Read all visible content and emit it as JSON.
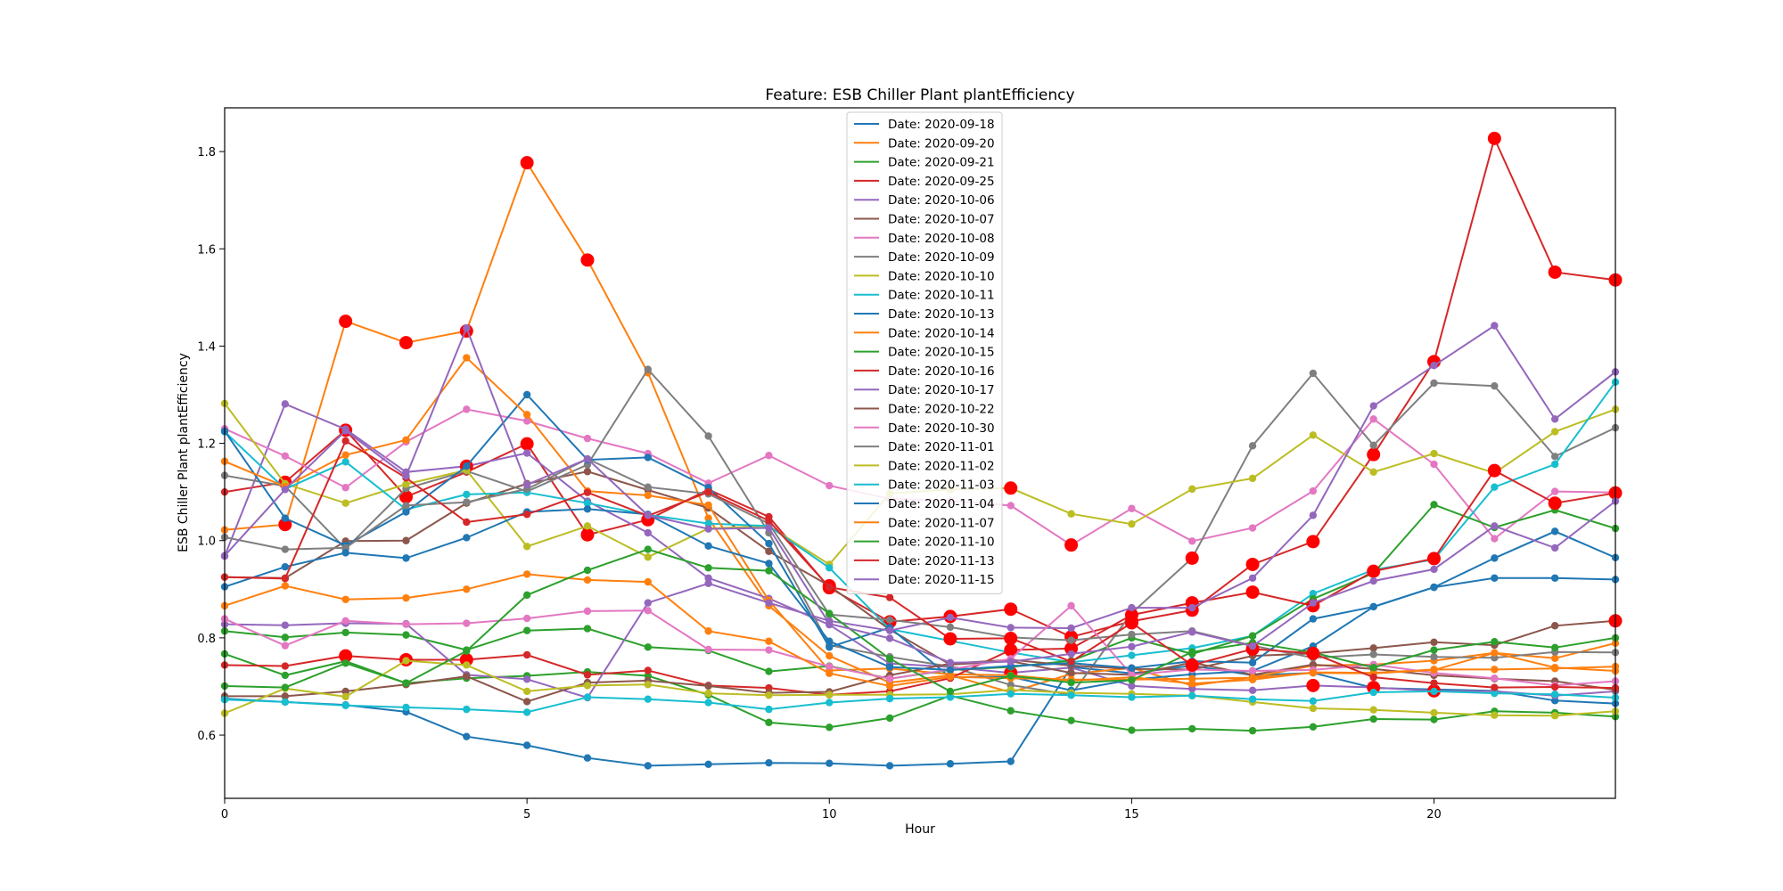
{
  "chart_data": {
    "type": "line",
    "title": "Feature: ESB Chiller Plant plantEfficiency",
    "xlabel": "Hour",
    "ylabel": "ESB Chiller Plant plantEfficiency",
    "xlim": [
      0,
      23
    ],
    "ylim": [
      0.47,
      1.89
    ],
    "xticks": [
      0,
      5,
      10,
      15,
      20
    ],
    "yticks": [
      0.6,
      0.8,
      1.0,
      1.2,
      1.4,
      1.6,
      1.8
    ],
    "legend_position": "top-center",
    "grid": false,
    "x": [
      0,
      1,
      2,
      3,
      4,
      5,
      6,
      7,
      8,
      9,
      10,
      11,
      12,
      13,
      14,
      15,
      16,
      17,
      18,
      19,
      20,
      21,
      22,
      23
    ],
    "anomaly_color": "#ff0000",
    "series": [
      {
        "name": "Date: 2020-09-18",
        "color": "#1f77b4",
        "values": [
          0.675,
          0.668,
          0.662,
          0.648,
          0.597,
          0.579,
          0.553,
          0.537,
          0.54,
          0.543,
          0.542,
          0.537,
          0.541,
          0.546,
          0.74,
          0.727,
          0.743,
          0.723,
          0.728,
          0.697,
          0.694,
          0.691,
          0.671,
          0.665
        ],
        "anomalies": []
      },
      {
        "name": "Date: 2020-09-20",
        "color": "#ff7f0e",
        "values": [
          1.022,
          1.033,
          1.451,
          1.407,
          1.431,
          1.777,
          1.577,
          1.345,
          1.046,
          0.866,
          0.763,
          0.708,
          0.723,
          0.688,
          0.726,
          0.738,
          0.702,
          0.719,
          0.743,
          0.745,
          0.753,
          0.769,
          0.758,
          0.789
        ],
        "anomalies": [
          1,
          2,
          3,
          4,
          5,
          6
        ]
      },
      {
        "name": "Date: 2020-09-21",
        "color": "#2ca02c",
        "values": [
          0.767,
          0.723,
          0.752,
          0.707,
          0.717,
          0.722,
          0.73,
          0.722,
          0.683,
          0.626,
          0.616,
          0.635,
          0.681,
          0.65,
          0.63,
          0.61,
          0.613,
          0.609,
          0.617,
          0.633,
          0.632,
          0.649,
          0.646,
          0.638
        ],
        "anomalies": []
      },
      {
        "name": "Date: 2020-09-25",
        "color": "#d62728",
        "values": [
          1.1,
          1.12,
          1.227,
          1.09,
          1.141,
          1.199,
          1.012,
          1.043,
          1.105,
          1.049,
          0.903,
          0.833,
          0.844,
          0.859,
          0.802,
          0.834,
          0.857,
          0.951,
          0.998,
          1.177,
          1.368,
          1.827,
          1.552,
          1.536
        ],
        "anomalies": [
          1,
          2,
          3,
          5,
          6,
          7,
          10,
          11,
          12,
          13,
          14,
          15,
          16,
          17,
          18,
          19,
          20,
          21,
          22,
          23
        ]
      },
      {
        "name": "Date: 2020-10-06",
        "color": "#9467bd",
        "values": [
          0.968,
          1.281,
          1.229,
          1.141,
          1.153,
          1.18,
          1.081,
          1.016,
          0.923,
          0.881,
          0.827,
          0.747,
          0.74,
          0.728,
          0.739,
          0.701,
          0.695,
          0.692,
          0.702,
          0.698,
          0.691,
          0.69,
          0.681,
          0.69
        ],
        "anomalies": [
          4,
          13,
          18,
          19,
          20
        ]
      },
      {
        "name": "Date: 2020-10-07",
        "color": "#8c564b",
        "values": [
          0.925,
          0.923,
          0.999,
          1.0,
          1.077,
          1.117,
          1.142,
          1.104,
          1.067,
          0.978,
          0.907,
          0.817,
          0.745,
          0.752,
          0.728,
          0.724,
          0.749,
          0.724,
          0.745,
          0.736,
          0.723,
          0.716,
          0.711,
          0.693
        ],
        "anomalies": [
          10
        ]
      },
      {
        "name": "Date: 2020-10-08",
        "color": "#e377c2",
        "values": [
          1.23,
          1.174,
          1.109,
          1.203,
          1.27,
          1.246,
          1.21,
          1.179,
          1.118,
          1.175,
          1.113,
          1.086,
          1.082,
          1.072,
          0.991,
          1.066,
          0.999,
          1.026,
          1.102,
          1.25,
          1.157,
          1.004,
          1.101,
          1.099
        ],
        "anomalies": [
          14
        ]
      },
      {
        "name": "Date: 2020-10-09",
        "color": "#7f7f7f",
        "values": [
          1.134,
          1.112,
          0.983,
          1.107,
          1.143,
          1.101,
          1.156,
          1.352,
          1.215,
          1.016,
          0.785,
          0.761,
          0.741,
          0.703,
          0.683,
          0.851,
          0.964,
          1.195,
          1.344,
          1.196,
          1.324,
          1.318,
          1.173,
          1.232
        ],
        "anomalies": [
          16
        ]
      },
      {
        "name": "Date: 2020-10-10",
        "color": "#bcbd22",
        "values": [
          1.282,
          1.117,
          1.077,
          1.116,
          1.145,
          0.988,
          1.03,
          0.966,
          1.025,
          1.03,
          0.951,
          1.097,
          1.105,
          1.108,
          1.055,
          1.034,
          1.106,
          1.128,
          1.217,
          1.141,
          1.179,
          1.139,
          1.224,
          1.27
        ],
        "anomalies": [
          13
        ]
      },
      {
        "name": "Date: 2020-10-11",
        "color": "#17becf",
        "values": [
          1.224,
          1.106,
          1.162,
          1.064,
          1.095,
          1.099,
          1.077,
          1.053,
          1.035,
          1.03,
          0.944,
          0.818,
          0.794,
          0.77,
          0.75,
          0.764,
          0.779,
          0.804,
          0.891,
          0.94,
          0.961,
          1.11,
          1.157,
          1.326
        ],
        "anomalies": []
      },
      {
        "name": "Date: 2020-10-13",
        "color": "#1f77b4",
        "values": [
          1.225,
          1.046,
          0.99,
          1.059,
          1.153,
          1.3,
          1.166,
          1.171,
          1.109,
          0.994,
          0.781,
          0.821,
          0.719,
          0.72,
          0.692,
          0.714,
          0.725,
          0.732,
          0.783,
          0.864,
          0.904,
          0.964,
          1.019,
          0.965
        ],
        "anomalies": []
      },
      {
        "name": "Date: 2020-10-14",
        "color": "#ff7f0e",
        "values": [
          1.163,
          1.111,
          1.176,
          1.207,
          1.376,
          1.259,
          1.102,
          1.093,
          1.073,
          0.877,
          0.733,
          0.737,
          0.725,
          0.723,
          0.712,
          0.719,
          0.706,
          0.714,
          0.729,
          0.728,
          0.735,
          0.735,
          0.737,
          0.741
        ],
        "anomalies": []
      },
      {
        "name": "Date: 2020-10-15",
        "color": "#2ca02c",
        "values": [
          0.814,
          0.801,
          0.811,
          0.806,
          0.775,
          0.815,
          0.819,
          0.781,
          0.774,
          0.731,
          0.742,
          0.716,
          0.734,
          0.74,
          0.753,
          0.8,
          0.767,
          0.804,
          0.88,
          0.933,
          1.074,
          1.027,
          1.063,
          1.025
        ],
        "anomalies": []
      },
      {
        "name": "Date: 2020-10-16",
        "color": "#d62728",
        "values": [
          0.744,
          0.742,
          0.763,
          0.755,
          0.755,
          0.765,
          0.724,
          0.733,
          0.702,
          0.697,
          0.683,
          0.69,
          0.717,
          0.775,
          0.778,
          0.847,
          0.872,
          0.894,
          0.866,
          0.937,
          0.963,
          1.144,
          1.077,
          1.098
        ],
        "anomalies": [
          2,
          3,
          4,
          13,
          14,
          15,
          16,
          17,
          18,
          19,
          20,
          21,
          22,
          23
        ]
      },
      {
        "name": "Date: 2020-10-17",
        "color": "#9467bd",
        "values": [
          0.828,
          0.826,
          0.83,
          0.829,
          0.724,
          0.715,
          0.677,
          0.872,
          0.912,
          0.872,
          0.835,
          0.815,
          0.842,
          0.821,
          0.82,
          0.862,
          0.862,
          0.923,
          1.052,
          1.277,
          1.36,
          1.442,
          1.25,
          1.347
        ],
        "anomalies": []
      },
      {
        "name": "Date: 2020-10-22",
        "color": "#8c564b",
        "values": [
          0.68,
          0.68,
          0.69,
          0.704,
          0.721,
          0.669,
          0.708,
          0.712,
          0.701,
          0.687,
          0.689,
          0.723,
          0.747,
          0.755,
          0.743,
          0.736,
          0.735,
          0.763,
          0.768,
          0.779,
          0.791,
          0.785,
          0.825,
          0.835
        ],
        "anomalies": [
          23
        ]
      },
      {
        "name": "Date: 2020-10-30",
        "color": "#e377c2",
        "values": [
          0.839,
          0.784,
          0.835,
          0.828,
          0.83,
          0.84,
          0.855,
          0.856,
          0.776,
          0.775,
          0.741,
          0.716,
          0.735,
          0.757,
          0.866,
          0.724,
          0.735,
          0.732,
          0.734,
          0.745,
          0.728,
          0.717,
          0.702,
          0.711
        ],
        "anomalies": []
      },
      {
        "name": "Date: 2020-11-01",
        "color": "#7f7f7f",
        "values": [
          1.007,
          0.982,
          0.985,
          1.072,
          1.079,
          1.106,
          1.168,
          1.11,
          1.096,
          1.035,
          0.848,
          0.837,
          0.822,
          0.801,
          0.795,
          0.807,
          0.814,
          0.784,
          0.759,
          0.766,
          0.761,
          0.759,
          0.771,
          0.77
        ],
        "anomalies": []
      },
      {
        "name": "Date: 2020-11-02",
        "color": "#bcbd22",
        "values": [
          0.645,
          0.696,
          0.679,
          0.753,
          0.744,
          0.69,
          0.702,
          0.704,
          0.686,
          0.682,
          0.683,
          0.683,
          0.684,
          0.693,
          0.687,
          0.685,
          0.681,
          0.668,
          0.655,
          0.652,
          0.646,
          0.641,
          0.64,
          0.649
        ],
        "anomalies": []
      },
      {
        "name": "Date: 2020-11-03",
        "color": "#17becf",
        "values": [
          0.673,
          0.668,
          0.661,
          0.657,
          0.653,
          0.647,
          0.678,
          0.674,
          0.667,
          0.653,
          0.667,
          0.675,
          0.678,
          0.685,
          0.682,
          0.678,
          0.681,
          0.674,
          0.67,
          0.688,
          0.69,
          0.686,
          0.684,
          0.677
        ],
        "anomalies": []
      },
      {
        "name": "Date: 2020-11-04",
        "color": "#1f77b4",
        "values": [
          0.905,
          0.946,
          0.975,
          0.964,
          1.006,
          1.059,
          1.065,
          1.054,
          0.989,
          0.953,
          0.793,
          0.74,
          0.734,
          0.742,
          0.748,
          0.738,
          0.752,
          0.749,
          0.839,
          0.864,
          0.904,
          0.923,
          0.923,
          0.92
        ],
        "anomalies": []
      },
      {
        "name": "Date: 2020-11-07",
        "color": "#ff7f0e",
        "values": [
          0.866,
          0.907,
          0.879,
          0.882,
          0.9,
          0.931,
          0.919,
          0.915,
          0.814,
          0.793,
          0.727,
          0.701,
          0.72,
          0.717,
          0.714,
          0.714,
          0.716,
          0.718,
          0.728,
          0.727,
          0.734,
          0.769,
          0.739,
          0.732
        ],
        "anomalies": []
      },
      {
        "name": "Date: 2020-11-10",
        "color": "#2ca02c",
        "values": [
          0.701,
          0.698,
          0.748,
          0.707,
          0.773,
          0.888,
          0.939,
          0.982,
          0.944,
          0.938,
          0.85,
          0.757,
          0.69,
          0.722,
          0.708,
          0.713,
          0.771,
          0.79,
          0.77,
          0.739,
          0.775,
          0.792,
          0.78,
          0.8
        ],
        "anomalies": []
      },
      {
        "name": "Date: 2020-11-13",
        "color": "#d62728",
        "values": [
          0.925,
          0.922,
          1.205,
          1.129,
          1.038,
          1.054,
          1.099,
          1.051,
          1.1,
          1.041,
          0.904,
          0.883,
          0.798,
          0.799,
          0.751,
          0.831,
          0.744,
          0.777,
          0.768,
          0.719,
          0.707,
          0.698,
          0.699,
          0.697
        ],
        "anomalies": [
          12,
          13,
          15,
          16,
          17,
          18
        ]
      },
      {
        "name": "Date: 2020-11-15",
        "color": "#9467bd",
        "values": [
          0.969,
          1.105,
          1.226,
          1.133,
          1.437,
          1.115,
          1.168,
          1.052,
          1.024,
          1.026,
          0.829,
          0.799,
          0.749,
          0.751,
          0.767,
          0.782,
          0.812,
          0.783,
          0.872,
          0.917,
          0.941,
          1.03,
          0.985,
          1.081
        ],
        "anomalies": []
      }
    ]
  }
}
